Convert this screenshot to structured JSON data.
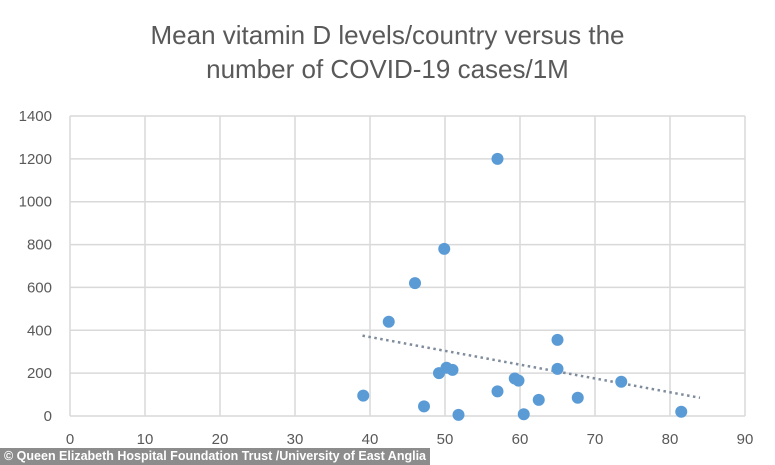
{
  "credit": "© Queen Elizabeth Hospital Foundation Trust /University of East Anglia",
  "colors": {
    "point": "#5b9bd5",
    "trend": "#7f8c9c",
    "grid": "#d9d9d9",
    "text": "#595959"
  },
  "chart_data": {
    "type": "scatter",
    "title_lines": [
      "Mean vitamin D levels/country versus the",
      "number of COVID-19 cases/1M"
    ],
    "xlabel": "",
    "ylabel": "",
    "xlim": [
      0,
      90
    ],
    "ylim": [
      0,
      1400
    ],
    "xticks": [
      "0",
      "10",
      "20",
      "30",
      "40",
      "50",
      "60",
      "70",
      "80",
      "90"
    ],
    "yticks": [
      "0",
      "200",
      "400",
      "600",
      "800",
      "1000",
      "1200",
      "1400"
    ],
    "grid": true,
    "legend": "none",
    "points": [
      {
        "x": 39.1,
        "y": 95
      },
      {
        "x": 42.5,
        "y": 440
      },
      {
        "x": 46.0,
        "y": 620
      },
      {
        "x": 47.2,
        "y": 45
      },
      {
        "x": 49.9,
        "y": 780
      },
      {
        "x": 49.2,
        "y": 200
      },
      {
        "x": 50.2,
        "y": 225
      },
      {
        "x": 51.0,
        "y": 215
      },
      {
        "x": 51.8,
        "y": 5
      },
      {
        "x": 57.0,
        "y": 115
      },
      {
        "x": 57.0,
        "y": 1200
      },
      {
        "x": 59.3,
        "y": 175
      },
      {
        "x": 59.8,
        "y": 165
      },
      {
        "x": 60.5,
        "y": 8
      },
      {
        "x": 62.5,
        "y": 75
      },
      {
        "x": 65.0,
        "y": 355
      },
      {
        "x": 65.0,
        "y": 220
      },
      {
        "x": 67.7,
        "y": 85
      },
      {
        "x": 73.5,
        "y": 160
      },
      {
        "x": 81.5,
        "y": 20
      }
    ],
    "trendline": {
      "type": "linear",
      "style": "dotted",
      "x": [
        39,
        84
      ],
      "y": [
        375,
        85
      ]
    }
  }
}
